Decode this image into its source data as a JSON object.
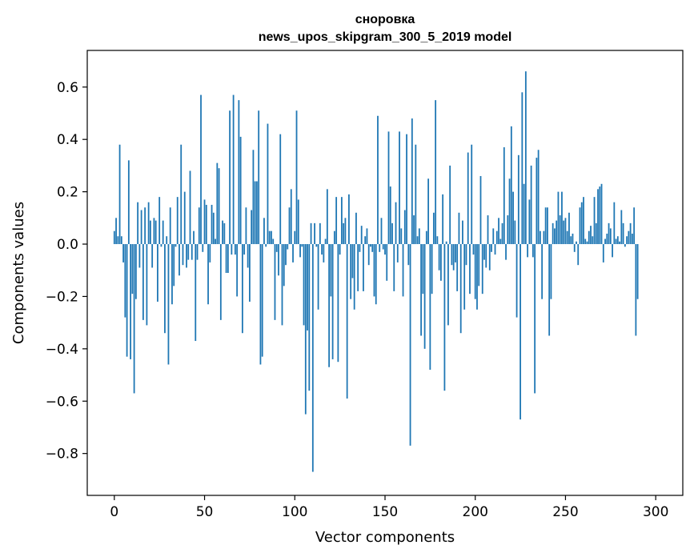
{
  "chart_data": {
    "type": "bar",
    "title": [
      "сноровка",
      "news_upos_skipgram_300_5_2019 model"
    ],
    "xlabel": "Vector components",
    "ylabel": "Components values",
    "xlim": [
      -15,
      315
    ],
    "ylim": [
      -0.96,
      0.74
    ],
    "xticks": [
      0,
      50,
      100,
      150,
      200,
      250,
      300
    ],
    "xtick_labels": [
      "0",
      "50",
      "100",
      "150",
      "200",
      "250",
      "300"
    ],
    "yticks": [
      0.6,
      0.4,
      0.2,
      0.0,
      -0.2,
      -0.4,
      -0.6,
      -0.8
    ],
    "ytick_labels": [
      "0.6",
      "0.4",
      "0.2",
      "0.0",
      "−0.2",
      "−0.4",
      "−0.6",
      "−0.8"
    ],
    "bar_color": "#1f77b4",
    "values": [
      0.05,
      0.1,
      0.03,
      0.38,
      0.03,
      -0.07,
      -0.28,
      -0.43,
      0.32,
      -0.44,
      -0.19,
      -0.57,
      -0.21,
      0.16,
      -0.09,
      0.13,
      -0.29,
      0.14,
      -0.31,
      0.16,
      0.09,
      -0.09,
      0.1,
      0.09,
      -0.22,
      0.18,
      -0.01,
      0.09,
      -0.34,
      0.03,
      -0.46,
      0.14,
      -0.23,
      -0.16,
      -0.01,
      0.18,
      -0.12,
      0.38,
      -0.08,
      0.2,
      -0.09,
      -0.06,
      0.28,
      -0.06,
      0.05,
      -0.37,
      -0.06,
      0.14,
      0.57,
      -0.03,
      0.17,
      0.15,
      -0.23,
      -0.07,
      0.15,
      0.12,
      0.02,
      0.31,
      0.29,
      -0.29,
      0.09,
      0.08,
      -0.11,
      -0.11,
      0.51,
      -0.04,
      0.57,
      -0.04,
      -0.2,
      0.55,
      0.41,
      -0.34,
      -0.04,
      0.14,
      -0.09,
      -0.22,
      0.13,
      0.36,
      0.24,
      0.24,
      0.51,
      -0.46,
      -0.43,
      0.1,
      -0.01,
      0.46,
      0.05,
      0.05,
      0.02,
      -0.29,
      -0.03,
      -0.12,
      0.42,
      -0.31,
      -0.16,
      -0.08,
      -0.02,
      0.14,
      0.21,
      -0.07,
      0.05,
      0.51,
      0.17,
      -0.05,
      -0.01,
      -0.31,
      -0.65,
      -0.33,
      -0.56,
      0.08,
      -0.87,
      0.08,
      -0.01,
      -0.25,
      0.08,
      -0.04,
      -0.07,
      0.02,
      0.21,
      -0.47,
      -0.2,
      -0.44,
      0.05,
      0.18,
      -0.45,
      -0.04,
      0.18,
      0.08,
      0.1,
      -0.59,
      0.19,
      -0.21,
      -0.13,
      -0.25,
      0.12,
      -0.18,
      -0.03,
      0.07,
      -0.18,
      0.03,
      0.06,
      -0.08,
      -0.01,
      -0.03,
      -0.2,
      -0.23,
      0.49,
      -0.03,
      0.1,
      -0.02,
      -0.04,
      -0.14,
      0.43,
      0.22,
      0.08,
      -0.18,
      0.16,
      -0.07,
      0.43,
      0.06,
      -0.2,
      0.13,
      0.42,
      -0.08,
      -0.77,
      0.48,
      0.11,
      0.38,
      0.03,
      0.06,
      -0.35,
      -0.19,
      -0.4,
      0.05,
      0.25,
      -0.48,
      -0.19,
      0.12,
      0.55,
      0.03,
      -0.1,
      -0.14,
      0.19,
      -0.56,
      0.01,
      -0.31,
      0.3,
      -0.08,
      -0.1,
      -0.07,
      -0.18,
      0.12,
      -0.34,
      0.09,
      -0.25,
      -0.08,
      0.35,
      -0.19,
      0.38,
      -0.04,
      -0.21,
      -0.25,
      -0.16,
      0.26,
      -0.19,
      -0.06,
      -0.09,
      0.11,
      -0.1,
      -0.03,
      0.06,
      -0.04,
      0.05,
      0.1,
      0.02,
      0.08,
      0.37,
      -0.06,
      0.11,
      0.25,
      0.45,
      0.2,
      0.09,
      -0.28,
      0.34,
      -0.67,
      0.58,
      0.23,
      0.66,
      -0.05,
      0.17,
      0.3,
      -0.05,
      -0.57,
      0.33,
      0.36,
      0.05,
      -0.21,
      0.05,
      0.14,
      0.14,
      -0.35,
      -0.21,
      0.08,
      0.06,
      0.09,
      0.2,
      0.11,
      0.2,
      0.09,
      0.1,
      0.05,
      0.12,
      0.03,
      0.04,
      -0.03,
      0.01,
      -0.08,
      0.14,
      0.16,
      0.18,
      0.02,
      0.01,
      0.05,
      0.07,
      0.03,
      0.18,
      0.08,
      0.21,
      0.22,
      0.23,
      -0.07,
      0.02,
      0.04,
      0.08,
      0.06,
      -0.05,
      0.16,
      0.02,
      0.03,
      0.01,
      0.13,
      0.08,
      -0.01,
      0.03,
      0.05,
      0.08,
      0.04,
      0.14,
      -0.35,
      -0.21
    ]
  }
}
